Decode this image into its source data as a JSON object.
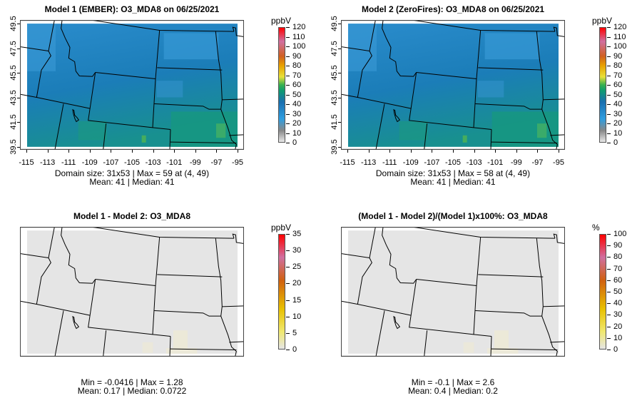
{
  "colors": {
    "map_base": "#1f82bd",
    "map_diff": "#e5e5e5"
  },
  "panels": [
    {
      "title": "Model 1 (EMBER): O3_MDA8 on 06/25/2021",
      "unit": "ppbV",
      "cb_ticks": [
        "0",
        "10",
        "20",
        "30",
        "40",
        "50",
        "60",
        "70",
        "80",
        "90",
        "100",
        "110",
        "120"
      ],
      "stats": [
        "Domain size: 31x53 | Max = 59 at (4, 49)",
        "Mean: 41 |  Median: 41"
      ],
      "kind": "conc",
      "axes": true
    },
    {
      "title": "Model 2 (ZeroFires): O3_MDA8 on 06/25/2021",
      "unit": "ppbV",
      "cb_ticks": [
        "0",
        "10",
        "20",
        "30",
        "40",
        "50",
        "60",
        "70",
        "80",
        "90",
        "100",
        "110",
        "120"
      ],
      "stats": [
        "Domain size: 31x53 | Max = 58 at (4, 49)",
        "Mean: 41 |  Median: 41"
      ],
      "kind": "conc",
      "axes": true
    },
    {
      "title": "Model 1 - Model 2: O3_MDA8",
      "unit": "ppbV",
      "cb_ticks": [
        "0",
        "5",
        "10",
        "15",
        "20",
        "25",
        "30",
        "35"
      ],
      "stats": [
        "Min = -0.0416 | Max = 1.28",
        "Mean: 0.17 |  Median: 0.0722"
      ],
      "kind": "diff",
      "axes": false
    },
    {
      "title": "(Model 1 - Model 2)/(Model 1)x100%: O3_MDA8",
      "unit": "%",
      "cb_ticks": [
        "0",
        "10",
        "20",
        "30",
        "40",
        "50",
        "60",
        "70",
        "80",
        "90",
        "100"
      ],
      "stats": [
        "Min = -0.1 | Max = 2.6",
        "Mean: 0.4 |  Median: 0.2"
      ],
      "kind": "diff",
      "axes": false
    }
  ],
  "x_ticks": [
    "-115",
    "-113",
    "-111",
    "-109",
    "-107",
    "-105",
    "-103",
    "-101",
    "-99",
    "-97",
    "-95"
  ],
  "y_ticks": [
    "39.5",
    "41.5",
    "43.5",
    "45.5",
    "47.5",
    "49.5"
  ]
}
